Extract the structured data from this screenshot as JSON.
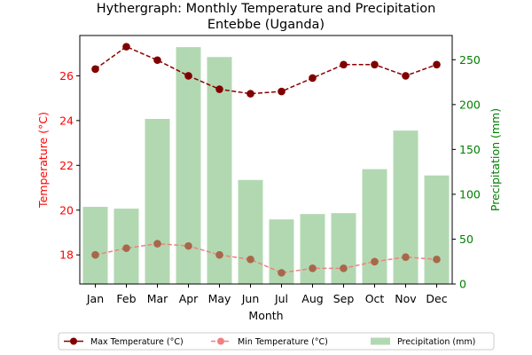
{
  "chart_data": {
    "type": "bar",
    "title": "Hythergraph: Monthly Temperature and Precipitation",
    "subtitle": "Entebbe (Uganda)",
    "xlabel": "Month",
    "ylabel_left": "Temperature (°C)",
    "ylabel_right": "Precipitation (mm)",
    "categories": [
      "Jan",
      "Feb",
      "Mar",
      "Apr",
      "May",
      "Jun",
      "Jul",
      "Aug",
      "Sep",
      "Oct",
      "Nov",
      "Dec"
    ],
    "ylim_left": [
      16.7,
      27.8
    ],
    "ylim_right": [
      0,
      277
    ],
    "yticks_left": [
      18,
      20,
      22,
      24,
      26
    ],
    "yticks_right": [
      0,
      50,
      100,
      150,
      200,
      250
    ],
    "series": [
      {
        "name": "Max Temperature (°C)",
        "type": "line",
        "axis": "left",
        "color": "#8b0000",
        "values": [
          26.3,
          27.3,
          26.7,
          26.0,
          25.4,
          25.2,
          25.3,
          25.9,
          26.5,
          26.5,
          26.0,
          26.5
        ]
      },
      {
        "name": "Min Temperature (°C)",
        "type": "line",
        "axis": "left",
        "color": "#f08080",
        "values": [
          18.0,
          18.3,
          18.5,
          18.4,
          18.0,
          17.8,
          17.2,
          17.4,
          17.4,
          17.7,
          17.9,
          17.8
        ]
      },
      {
        "name": "Precipitation (mm)",
        "type": "bar",
        "axis": "right",
        "color": "#b2d8b2",
        "values": [
          86,
          84,
          184,
          264,
          253,
          116,
          72,
          78,
          79,
          128,
          171,
          121
        ]
      }
    ],
    "legend_position": "bottom",
    "grid": false,
    "colors": {
      "left_axis": "#ff0000",
      "right_axis": "#008000"
    }
  }
}
